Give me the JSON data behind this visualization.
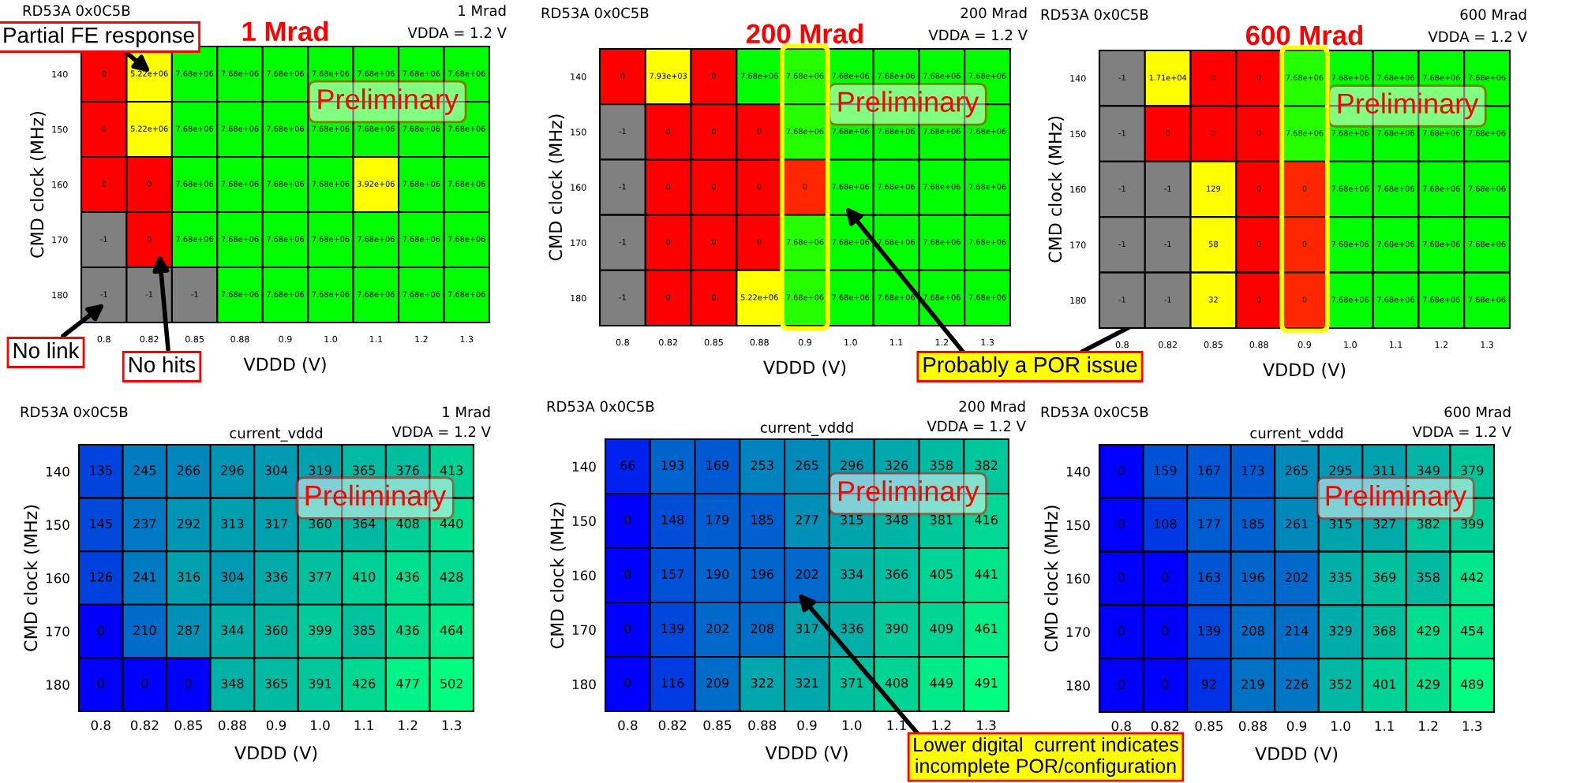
{
  "chart_data": [
    {
      "type": "heatmap",
      "title": "1 Mrad",
      "xlabel": "VDDD (V)",
      "ylabel": "CMD clock (MHz)",
      "categories": [
        "0.8",
        "0.82",
        "0.85",
        "0.88",
        "0.9",
        "1.0",
        "1.1",
        "1.2",
        "1.3"
      ],
      "y_categories": [
        "140",
        "150",
        "160",
        "170",
        "180"
      ],
      "colors": [
        "#808080",
        "#ff0000",
        "#ffff00",
        "#00ff00"
      ],
      "cells": [
        [
          0,
          5220000,
          7680000,
          7680000,
          7680000,
          7680000,
          7680000,
          7680000,
          7680000
        ],
        [
          0,
          5220000,
          7680000,
          7680000,
          7680000,
          7680000,
          7680000,
          7680000,
          7680000
        ],
        [
          0,
          0,
          7680000,
          7680000,
          7680000,
          7680000,
          3920000,
          7680000,
          7680000
        ],
        [
          -1,
          0,
          7680000,
          7680000,
          7680000,
          7680000,
          7680000,
          7680000,
          7680000
        ],
        [
          -1,
          -1,
          -1,
          7680000,
          7680000,
          7680000,
          7680000,
          7680000,
          7680000
        ]
      ],
      "cell_labels": [
        [
          "0",
          "5.22e+06",
          "7.68e+06",
          "7.68e+06",
          "7.68e+06",
          "7.68e+06",
          "7.68e+06",
          "7.68e+06",
          "7.68e+06"
        ],
        [
          "0",
          "5.22e+06",
          "7.68e+06",
          "7.68e+06",
          "7.68e+06",
          "7.68e+06",
          "7.68e+06",
          "7.68e+06",
          "7.68e+06"
        ],
        [
          "0",
          "0",
          "7.68e+06",
          "7.68e+06",
          "7.68e+06",
          "7.68e+06",
          "3.92e+06",
          "7.68e+06",
          "7.68e+06"
        ],
        [
          "-1",
          "0",
          "7.68e+06",
          "7.68e+06",
          "7.68e+06",
          "7.68e+06",
          "7.68e+06",
          "7.68e+06",
          "7.68e+06"
        ],
        [
          "-1",
          "-1",
          "-1",
          "7.68e+06",
          "7.68e+06",
          "7.68e+06",
          "7.68e+06",
          "7.68e+06",
          "7.68e+06"
        ]
      ],
      "annotations": [
        "RD53A 0x0C5B",
        "1 Mrad",
        "VDDA = 1.2 V",
        "Preliminary",
        "Partial FE response",
        "No link",
        "No hits"
      ]
    },
    {
      "type": "heatmap",
      "title": "200 Mrad",
      "xlabel": "VDDD (V)",
      "ylabel": "CMD clock (MHz)",
      "categories": [
        "0.8",
        "0.82",
        "0.85",
        "0.88",
        "0.9",
        "1.0",
        "1.1",
        "1.2",
        "1.3"
      ],
      "y_categories": [
        "140",
        "150",
        "160",
        "170",
        "180"
      ],
      "colors": [
        "#808080",
        "#ff0000",
        "#ffff00",
        "#00ff00"
      ],
      "cells": [
        [
          0,
          7930,
          0,
          7680000,
          7680000,
          7680000,
          7680000,
          7680000,
          7680000
        ],
        [
          -1,
          0,
          0,
          0,
          7680000,
          7680000,
          7680000,
          7680000,
          7680000
        ],
        [
          -1,
          0,
          0,
          0,
          0,
          7680000,
          7680000,
          7680000,
          7680000
        ],
        [
          -1,
          0,
          0,
          0,
          7680000,
          7680000,
          7680000,
          7680000,
          7680000
        ],
        [
          -1,
          0,
          0,
          5220000,
          7680000,
          7680000,
          7680000,
          7680000,
          7680000
        ]
      ],
      "cell_labels": [
        [
          "0",
          "7.93e+03",
          "0",
          "7.68e+06",
          "7.68e+06",
          "7.68e+06",
          "7.68e+06",
          "7.68e+06",
          "7.68e+06"
        ],
        [
          "-1",
          "0",
          "0",
          "0",
          "7.68e+06",
          "7.68e+06",
          "7.68e+06",
          "7.68e+06",
          "7.68e+06"
        ],
        [
          "-1",
          "0",
          "0",
          "0",
          "0",
          "7.68e+06",
          "7.68e+06",
          "7.68e+06",
          "7.68e+06"
        ],
        [
          "-1",
          "0",
          "0",
          "0",
          "7.68e+06",
          "7.68e+06",
          "7.68e+06",
          "7.68e+06",
          "7.68e+06"
        ],
        [
          "-1",
          "0",
          "0",
          "5.22e+06",
          "7.68e+06",
          "7.68e+06",
          "7.68e+06",
          "7.68e+06",
          "7.68e+06"
        ]
      ],
      "bands": [
        {
          "axis": "x",
          "from": "0.9",
          "to": "0.9",
          "color": "#ffff00"
        }
      ],
      "annotations": [
        "RD53A 0x0C5B",
        "200 Mrad",
        "VDDA = 1.2 V",
        "Preliminary",
        "Probably a POR issue"
      ]
    },
    {
      "type": "heatmap",
      "title": "600 Mrad",
      "xlabel": "VDDD (V)",
      "ylabel": "CMD clock (MHz)",
      "categories": [
        "0.8",
        "0.82",
        "0.85",
        "0.88",
        "0.9",
        "1.0",
        "1.1",
        "1.2",
        "1.3"
      ],
      "y_categories": [
        "140",
        "150",
        "160",
        "170",
        "180"
      ],
      "colors": [
        "#808080",
        "#ff0000",
        "#ffff00",
        "#00ff00"
      ],
      "cells": [
        [
          -1,
          17100,
          0,
          0,
          7680000,
          7680000,
          7680000,
          7680000,
          7680000
        ],
        [
          -1,
          0,
          0,
          0,
          7680000,
          7680000,
          7680000,
          7680000,
          7680000
        ],
        [
          -1,
          -1,
          129,
          0,
          0,
          7680000,
          7680000,
          7680000,
          7680000
        ],
        [
          -1,
          -1,
          58,
          0,
          0,
          7680000,
          7680000,
          7680000,
          7680000
        ],
        [
          -1,
          -1,
          32,
          0,
          0,
          7680000,
          7680000,
          7680000,
          7680000
        ]
      ],
      "cell_labels": [
        [
          "-1",
          "1.71e+04",
          "0",
          "0",
          "7.68e+06",
          "7.68e+06",
          "7.68e+06",
          "7.68e+06",
          "7.68e+06"
        ],
        [
          "-1",
          "0",
          "0",
          "0",
          "7.68e+06",
          "7.68e+06",
          "7.68e+06",
          "7.68e+06",
          "7.68e+06"
        ],
        [
          "-1",
          "-1",
          "129",
          "0",
          "0",
          "7.68e+06",
          "7.68e+06",
          "7.68e+06",
          "7.68e+06"
        ],
        [
          "-1",
          "-1",
          "58",
          "0",
          "0",
          "7.68e+06",
          "7.68e+06",
          "7.68e+06",
          "7.68e+06"
        ],
        [
          "-1",
          "-1",
          "32",
          "0",
          "0",
          "7.68e+06",
          "7.68e+06",
          "7.68e+06",
          "7.68e+06"
        ]
      ],
      "bands": [
        {
          "axis": "x",
          "from": "0.9",
          "to": "0.9",
          "color": "#ffff00"
        }
      ],
      "annotations": [
        "RD53A 0x0C5B",
        "600 Mrad",
        "VDDA = 1.2 V",
        "Preliminary"
      ]
    },
    {
      "type": "heatmap",
      "title": "current_vddd",
      "xlabel": "VDDD (V)",
      "ylabel": "CMD clock (MHz)",
      "categories": [
        "0.8",
        "0.82",
        "0.85",
        "0.88",
        "0.9",
        "1.0",
        "1.1",
        "1.2",
        "1.3"
      ],
      "y_categories": [
        "140",
        "150",
        "160",
        "170",
        "180"
      ],
      "data_labels": true,
      "cells": [
        [
          135,
          245,
          266,
          296,
          304,
          319,
          365,
          376,
          413
        ],
        [
          145,
          237,
          292,
          313,
          317,
          360,
          364,
          408,
          440
        ],
        [
          126,
          241,
          316,
          304,
          336,
          377,
          410,
          436,
          428
        ],
        [
          0,
          210,
          287,
          344,
          360,
          399,
          385,
          436,
          464
        ],
        [
          0,
          0,
          0,
          348,
          365,
          391,
          426,
          477,
          502
        ]
      ],
      "annotations": [
        "RD53A 0x0C5B",
        "1 Mrad",
        "VDDA = 1.2 V",
        "Preliminary"
      ]
    },
    {
      "type": "heatmap",
      "title": "current_vddd",
      "xlabel": "VDDD (V)",
      "ylabel": "CMD clock (MHz)",
      "categories": [
        "0.8",
        "0.82",
        "0.85",
        "0.88",
        "0.9",
        "1.0",
        "1.1",
        "1.2",
        "1.3"
      ],
      "y_categories": [
        "140",
        "150",
        "160",
        "170",
        "180"
      ],
      "data_labels": true,
      "cells": [
        [
          66,
          193,
          169,
          253,
          265,
          296,
          326,
          358,
          382
        ],
        [
          0,
          148,
          179,
          185,
          277,
          315,
          348,
          381,
          416
        ],
        [
          0,
          157,
          190,
          196,
          202,
          334,
          366,
          405,
          441
        ],
        [
          0,
          139,
          202,
          208,
          317,
          336,
          390,
          409,
          461
        ],
        [
          0,
          116,
          209,
          322,
          321,
          371,
          408,
          449,
          491
        ]
      ],
      "annotations": [
        "RD53A 0x0C5B",
        "200 Mrad",
        "VDDA = 1.2 V",
        "Preliminary",
        "Lower digital  current indicates\nincomplete POR/configuration"
      ]
    },
    {
      "type": "heatmap",
      "title": "current_vddd",
      "xlabel": "VDDD (V)",
      "ylabel": "CMD clock (MHz)",
      "categories": [
        "0.8",
        "0.82",
        "0.85",
        "0.88",
        "0.9",
        "1.0",
        "1.1",
        "1.2",
        "1.3"
      ],
      "y_categories": [
        "140",
        "150",
        "160",
        "170",
        "180"
      ],
      "data_labels": true,
      "cells": [
        [
          0,
          159,
          167,
          173,
          265,
          295,
          311,
          349,
          379
        ],
        [
          0,
          108,
          177,
          185,
          261,
          315,
          327,
          382,
          399
        ],
        [
          0,
          0,
          163,
          196,
          202,
          335,
          369,
          358,
          442
        ],
        [
          0,
          0,
          139,
          208,
          214,
          329,
          368,
          429,
          454
        ],
        [
          0,
          0,
          92,
          219,
          226,
          352,
          401,
          429,
          489
        ]
      ],
      "annotations": [
        "RD53A 0x0C5B",
        "600 Mrad",
        "VDDA = 1.2 V",
        "Preliminary"
      ]
    }
  ]
}
